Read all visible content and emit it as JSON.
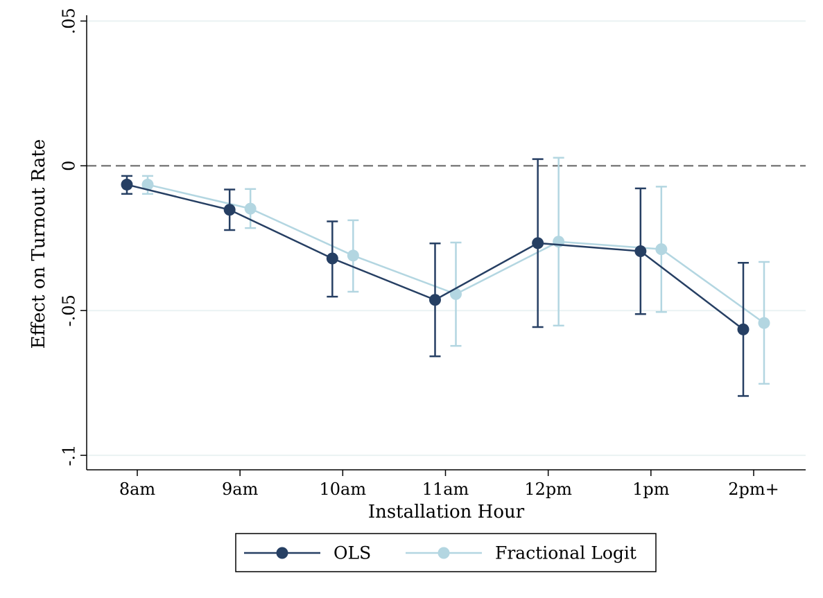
{
  "chart_data": {
    "type": "line",
    "title": "",
    "xlabel": "Installation Hour",
    "ylabel": "Effect on Turnout Rate",
    "categories": [
      "8am",
      "9am",
      "10am",
      "11am",
      "12pm",
      "1pm",
      "2pm+"
    ],
    "ylim": [
      -0.105,
      0.052
    ],
    "yticks": [
      {
        "value": 0.05,
        "label": ".05"
      },
      {
        "value": 0,
        "label": "0"
      },
      {
        "value": -0.05,
        "label": "-.05"
      },
      {
        "value": -0.1,
        "label": "-.1"
      }
    ],
    "reference_line": {
      "value": 0,
      "style": "dashed"
    },
    "grid": "horizontal",
    "legend_position": "bottom",
    "series": [
      {
        "name": "OLS",
        "color": "#263f63",
        "values": [
          -0.0065,
          -0.0152,
          -0.032,
          -0.0463,
          -0.0267,
          -0.0295,
          -0.0565
        ],
        "ci_low": [
          -0.0097,
          -0.0222,
          -0.0452,
          -0.0658,
          -0.0557,
          -0.0512,
          -0.0795
        ],
        "ci_high": [
          -0.0035,
          -0.0082,
          -0.0192,
          -0.0268,
          0.0023,
          -0.0078,
          -0.0335
        ]
      },
      {
        "name": "Fractional Logit",
        "color": "#b3d6e1",
        "values": [
          -0.0065,
          -0.0148,
          -0.031,
          -0.0443,
          -0.0262,
          -0.0288,
          -0.0543
        ],
        "ci_low": [
          -0.0097,
          -0.0215,
          -0.0435,
          -0.0622,
          -0.0552,
          -0.0505,
          -0.0753
        ],
        "ci_high": [
          -0.0035,
          -0.008,
          -0.0188,
          -0.0265,
          0.0028,
          -0.0072,
          -0.0332
        ]
      }
    ]
  }
}
